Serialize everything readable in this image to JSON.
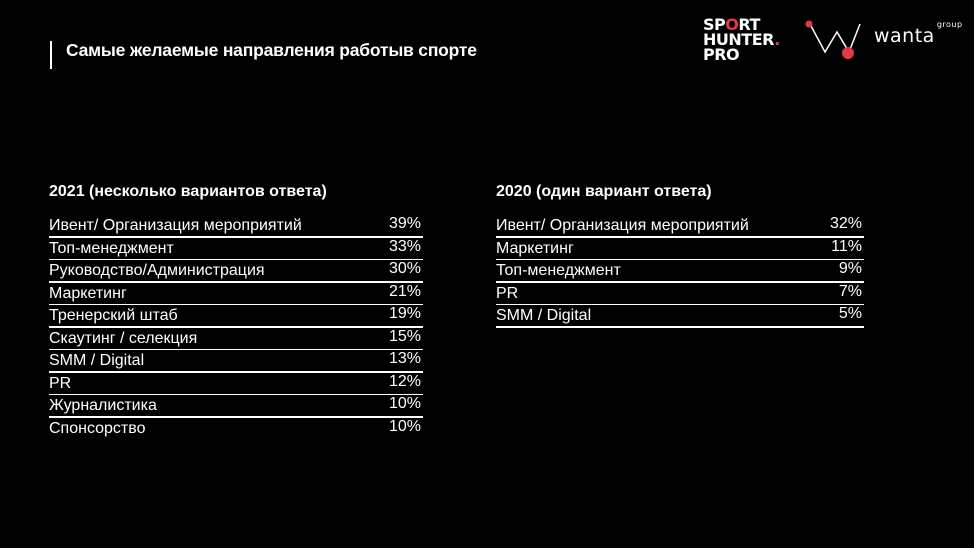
{
  "header": {
    "title": "Самые желаемые направления работыв спорте"
  },
  "logos": {
    "sporthunter": {
      "line1a": "SP",
      "line1b": "O",
      "line1c": "RT",
      "line2": "HUNTER",
      "line2dot": ".",
      "line3": "PRO"
    },
    "wanta": {
      "name": "wanta",
      "suffix": "group"
    },
    "accent_color": "#e63946"
  },
  "section_2021": {
    "heading": "2021 (несколько вариантов ответа)",
    "rows": [
      {
        "label": "Ивент/ Организация мероприятий",
        "value": "39%"
      },
      {
        "label": "Топ-менеджмент",
        "value": "33%"
      },
      {
        "label": "Руководство/Администрация",
        "value": "30%"
      },
      {
        "label": "Маркетинг",
        "value": "21%"
      },
      {
        "label": "Тренерский штаб",
        "value": "19%"
      },
      {
        "label": "Скаутинг / селекция",
        "value": "15%"
      },
      {
        "label": "SMM / Digital",
        "value": "13%"
      },
      {
        "label": "PR",
        "value": "12%"
      },
      {
        "label": "Журналистика",
        "value": "10%"
      },
      {
        "label": "Спонсорство",
        "value": "10%"
      }
    ]
  },
  "section_2020": {
    "heading": "2020 (один вариант ответа)",
    "rows": [
      {
        "label": "Ивент/ Организация мероприятий",
        "value": "32%"
      },
      {
        "label": "Маркетинг",
        "value": "11%"
      },
      {
        "label": "Топ-менеджмент",
        "value": "9%"
      },
      {
        "label": "PR",
        "value": "7%"
      },
      {
        "label": "SMM / Digital",
        "value": "5%"
      }
    ]
  }
}
